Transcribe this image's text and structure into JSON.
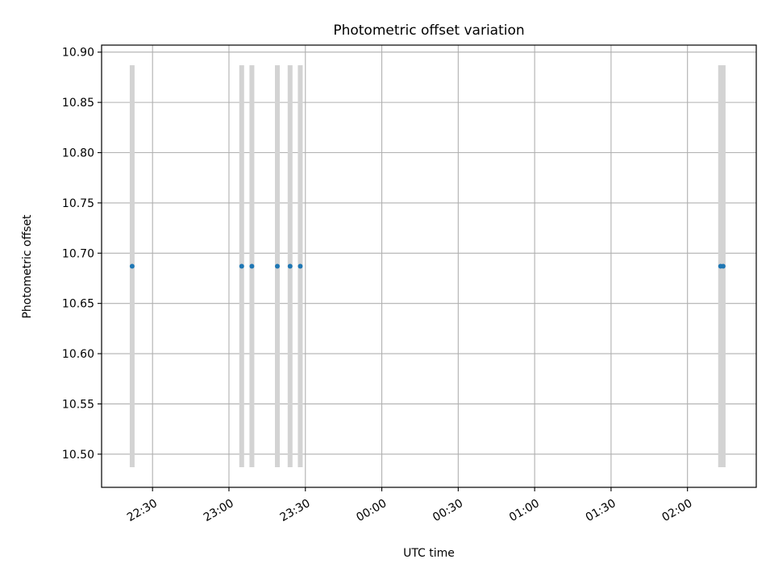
{
  "chart_data": {
    "type": "scatter",
    "title": "Photometric offset variation",
    "xlabel": "UTC time",
    "ylabel": "Photometric offset",
    "xlim": [
      "22:10",
      "02:27"
    ],
    "ylim": [
      10.467,
      10.907
    ],
    "x_ticks": [
      "22:30",
      "23:00",
      "23:30",
      "00:00",
      "00:30",
      "01:00",
      "01:30",
      "02:00"
    ],
    "y_ticks": [
      "10.50",
      "10.55",
      "10.60",
      "10.65",
      "10.70",
      "10.75",
      "10.80",
      "10.85",
      "10.90"
    ],
    "grid": true,
    "series": [
      {
        "values": [
          {
            "x": "22:22",
            "y": 10.687,
            "yerr": 0.2
          },
          {
            "x": "23:05",
            "y": 10.687,
            "yerr": 0.2
          },
          {
            "x": "23:09",
            "y": 10.687,
            "yerr": 0.2
          },
          {
            "x": "23:19",
            "y": 10.687,
            "yerr": 0.2
          },
          {
            "x": "23:24",
            "y": 10.687,
            "yerr": 0.2
          },
          {
            "x": "23:28",
            "y": 10.687,
            "yerr": 0.2
          },
          {
            "x": "02:13",
            "y": 10.687,
            "yerr": 0.2
          },
          {
            "x": "02:14",
            "y": 10.687,
            "yerr": 0.2
          }
        ]
      }
    ],
    "colors": {
      "marker": "#1f77b4",
      "errorbar": "#d3d3d3",
      "grid": "#b0b0b0",
      "axes": "#000000"
    }
  }
}
